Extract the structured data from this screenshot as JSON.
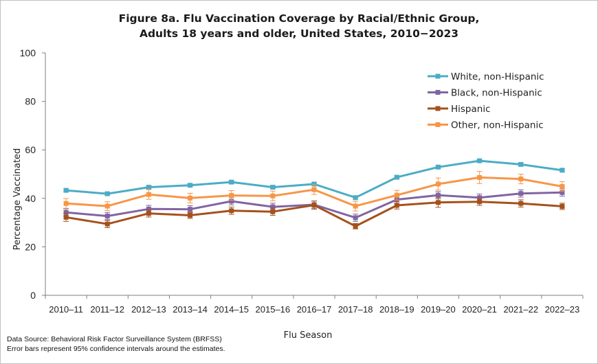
{
  "title_line1": "Figure 8a. Flu Vaccination Coverage by Racial/Ethnic Group,",
  "title_line2": "Adults 18 years and older, United States, 2010−2023",
  "footnote_source": "Data Source: Behavioral Risk Factor Surveillance System (BRFSS)",
  "footnote_error": "Error bars represent 95% confidence intervals around the estimates.",
  "chart_data": {
    "type": "line",
    "title": "Figure 8a. Flu Vaccination Coverage by Racial/Ethnic Group, Adults 18 years and older, United States, 2010−2023",
    "xlabel": "Flu Season",
    "ylabel": "Percentage Vaccinated",
    "ylim": [
      0,
      100
    ],
    "yticks": [
      0,
      20,
      40,
      60,
      80,
      100
    ],
    "grid": false,
    "legend_position": "top-right",
    "categories": [
      "2010–11",
      "2011–12",
      "2012–13",
      "2013–14",
      "2014–15",
      "2015–16",
      "2016–17",
      "2017–18",
      "2018–19",
      "2019–20",
      "2020–21",
      "2021–22",
      "2022–23"
    ],
    "series": [
      {
        "name": "White, non-Hispanic",
        "color": "#4bacc6",
        "values": [
          43.3,
          41.9,
          44.6,
          45.4,
          46.7,
          44.6,
          45.9,
          40.3,
          48.7,
          52.9,
          55.5,
          54.0,
          51.6
        ],
        "error": [
          0.6,
          0.6,
          0.6,
          0.6,
          0.6,
          0.6,
          0.6,
          0.6,
          0.6,
          0.6,
          0.6,
          0.6,
          0.6
        ]
      },
      {
        "name": "Black, non-Hispanic",
        "color": "#8064a2",
        "values": [
          34.2,
          32.7,
          35.6,
          35.5,
          38.8,
          36.5,
          37.4,
          32.0,
          39.5,
          41.3,
          40.3,
          42.0,
          42.4
        ],
        "error": [
          1.5,
          1.5,
          1.5,
          1.5,
          1.5,
          1.5,
          1.5,
          1.5,
          1.5,
          1.5,
          1.5,
          1.5,
          1.5
        ]
      },
      {
        "name": "Hispanic",
        "color": "#a5511b",
        "values": [
          32.2,
          29.4,
          33.8,
          33.0,
          34.9,
          34.5,
          37.2,
          28.5,
          37.1,
          38.3,
          38.6,
          37.9,
          36.7
        ],
        "error": [
          1.7,
          1.5,
          1.5,
          1.3,
          1.5,
          1.5,
          1.7,
          1.1,
          1.5,
          2.0,
          1.5,
          1.5,
          1.3
        ]
      },
      {
        "name": "Other, non-Hispanic",
        "color": "#f79646",
        "values": [
          37.9,
          36.8,
          41.6,
          40.1,
          41.2,
          41.0,
          43.6,
          36.8,
          41.3,
          45.9,
          48.6,
          48.0,
          44.9
        ],
        "error": [
          2.0,
          1.8,
          2.0,
          2.0,
          2.0,
          2.0,
          2.0,
          2.0,
          2.0,
          2.5,
          2.5,
          2.0,
          2.0
        ]
      }
    ]
  }
}
